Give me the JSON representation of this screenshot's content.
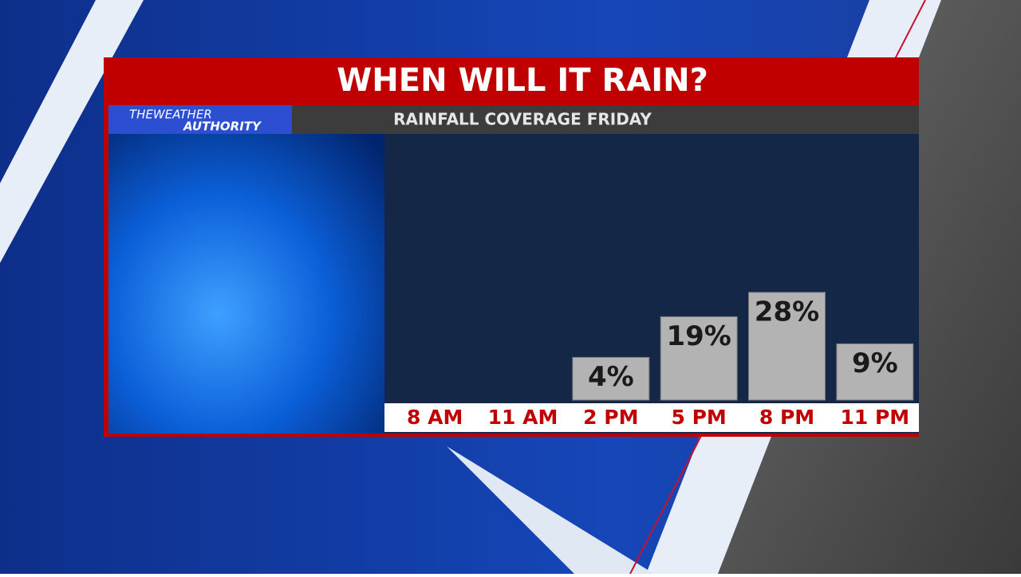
{
  "chart_data": {
    "type": "bar",
    "title": "WHEN WILL IT RAIN?",
    "subtitle": "RAINFALL COVERAGE FRIDAY",
    "logo": [
      "THEWEATHER",
      "AUTHORITY"
    ],
    "categories": [
      "8 AM",
      "11 AM",
      "2 PM",
      "5 PM",
      "8 PM",
      "11 PM"
    ],
    "values": [
      null,
      null,
      4,
      19,
      28,
      9
    ],
    "value_labels": [
      null,
      null,
      "4%",
      "19%",
      "28%",
      "9%"
    ],
    "color": "#b3b3b3"
  }
}
